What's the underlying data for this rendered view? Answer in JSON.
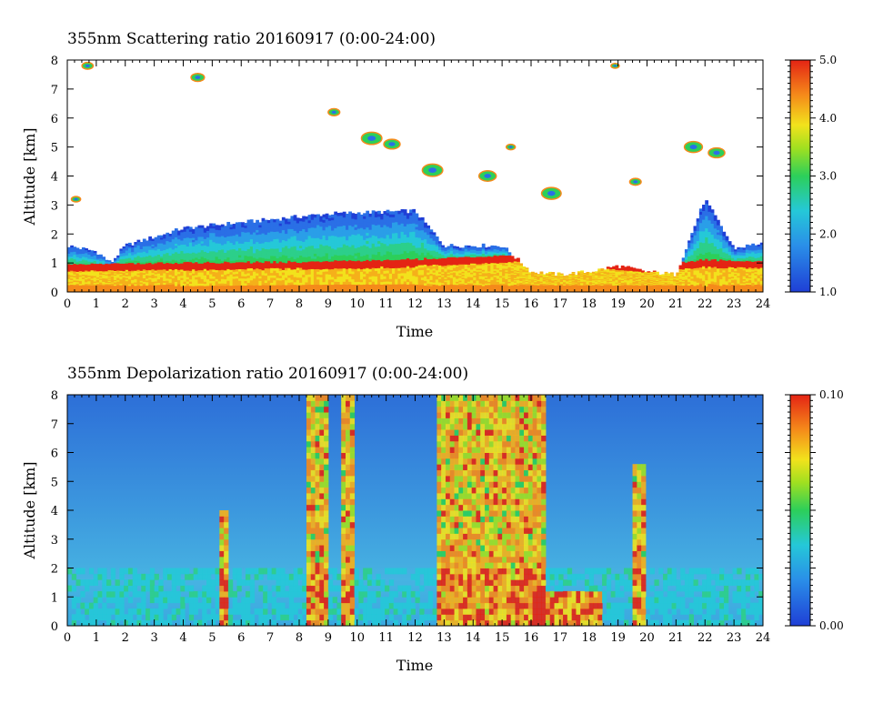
{
  "chart_data": [
    {
      "type": "heatmap",
      "title": "355nm Scattering ratio  20160917 (0:00-24:00)",
      "xlabel": "Time",
      "ylabel": "Altitude [km]",
      "xlim": [
        0,
        24
      ],
      "ylim": [
        0,
        8
      ],
      "xticks": [
        0,
        1,
        2,
        3,
        4,
        5,
        6,
        7,
        8,
        9,
        10,
        11,
        12,
        13,
        14,
        15,
        16,
        17,
        18,
        19,
        20,
        21,
        22,
        23,
        24
      ],
      "yticks": [
        0,
        1,
        2,
        3,
        4,
        5,
        6,
        7,
        8
      ],
      "colorbar": {
        "min": 1.0,
        "max": 5.0,
        "labels": [
          "1.0",
          "2.0",
          "3.0",
          "4.0",
          "5.0"
        ],
        "values": [
          1,
          2,
          3,
          4,
          5
        ]
      },
      "layers": [
        {
          "name": "boundary_layer_top_km",
          "x": [
            0,
            1,
            1.5,
            2,
            4,
            5,
            7,
            9,
            12,
            13,
            15,
            16,
            17,
            18,
            19,
            20,
            21,
            22,
            23,
            24
          ],
          "y": [
            1.6,
            1.4,
            1.0,
            1.6,
            2.2,
            2.3,
            2.5,
            2.7,
            2.8,
            1.6,
            1.6,
            0.7,
            0.6,
            0.7,
            0.9,
            0.7,
            0.6,
            3.2,
            1.5,
            1.7
          ]
        },
        {
          "name": "strong_backscatter_km",
          "x": [
            0,
            2,
            6,
            10,
            14,
            16,
            20,
            22,
            24
          ],
          "y": [
            0.85,
            0.88,
            0.92,
            0.95,
            1.1,
            1.2,
            0.8,
            1.0,
            0.95
          ]
        }
      ],
      "clouds": [
        {
          "t": 0.7,
          "alt": 7.8
        },
        {
          "t": 4.5,
          "alt": 7.4
        },
        {
          "t": 9.2,
          "alt": 6.2
        },
        {
          "t": 10.5,
          "alt": 5.3
        },
        {
          "t": 11.2,
          "alt": 5.1
        },
        {
          "t": 12.6,
          "alt": 4.2
        },
        {
          "t": 14.5,
          "alt": 4.0
        },
        {
          "t": 15.3,
          "alt": 5.0
        },
        {
          "t": 16.7,
          "alt": 3.4
        },
        {
          "t": 18.9,
          "alt": 7.8
        },
        {
          "t": 19.6,
          "alt": 3.8
        },
        {
          "t": 21.6,
          "alt": 5.0
        },
        {
          "t": 22.4,
          "alt": 4.8
        },
        {
          "t": 0.3,
          "alt": 3.2
        }
      ]
    },
    {
      "type": "heatmap",
      "title": "355nm Depolarization ratio  20160917 (0:00-24:00)",
      "xlabel": "Time",
      "ylabel": "Altitude [km]",
      "xlim": [
        0,
        24
      ],
      "ylim": [
        0,
        8
      ],
      "xticks": [
        0,
        1,
        2,
        3,
        4,
        5,
        6,
        7,
        8,
        9,
        10,
        11,
        12,
        13,
        14,
        15,
        16,
        17,
        18,
        19,
        20,
        21,
        22,
        23,
        24
      ],
      "yticks": [
        0,
        1,
        2,
        3,
        4,
        5,
        6,
        7,
        8
      ],
      "colorbar": {
        "min": 0.0,
        "max": 0.1,
        "labels": [
          "0.00",
          "0.10"
        ],
        "values": [
          0,
          0.1
        ]
      },
      "high_depol_bands": [
        {
          "t0": 8.3,
          "t1": 9.0,
          "alt_max": 8
        },
        {
          "t0": 9.5,
          "t1": 9.9,
          "alt_max": 8
        },
        {
          "t0": 12.7,
          "t1": 16.5,
          "alt_max": 8
        },
        {
          "t0": 16.0,
          "t1": 18.5,
          "alt_max": 1.2
        },
        {
          "t0": 19.5,
          "t1": 20.0,
          "alt_max": 5.5
        },
        {
          "t0": 5.2,
          "t1": 5.6,
          "alt_max": 4.0
        }
      ]
    }
  ]
}
